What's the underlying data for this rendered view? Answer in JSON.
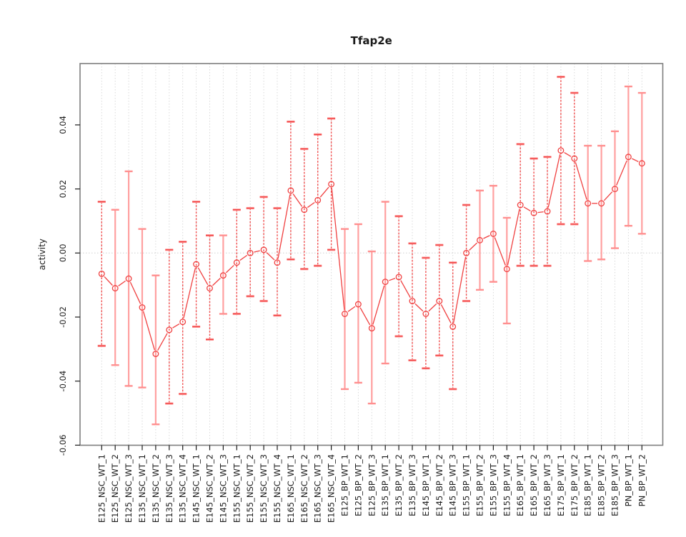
{
  "title": "Tfap2e",
  "chart_data": {
    "type": "line",
    "title": "Tfap2e",
    "xlabel": "",
    "ylabel": "activity",
    "ylim": [
      -0.0605,
      0.059
    ],
    "grid": "vertical-dotted-per-category, horizontal-dotted-at-zero",
    "legend": "none",
    "yticks": [
      0.04,
      0.02,
      0.0,
      -0.02,
      -0.04,
      -0.06
    ],
    "ytick_labels": [
      "0.04",
      "0.02",
      "0.00",
      "-0.02",
      "-0.04",
      "-0.06"
    ],
    "categories": [
      "E125_NSC_WT_1",
      "E125_NSC_WT_2",
      "E125_NSC_WT_3",
      "E135_NSC_WT_1",
      "E135_NSC_WT_2",
      "E135_NSC_WT_3",
      "E135_NSC_WT_4",
      "E145_NSC_WT_1",
      "E145_NSC_WT_2",
      "E145_NSC_WT_3",
      "E155_NSC_WT_1",
      "E155_NSC_WT_2",
      "E155_NSC_WT_3",
      "E155_NSC_WT_4",
      "E165_NSC_WT_1",
      "E165_NSC_WT_2",
      "E165_NSC_WT_3",
      "E165_NSC_WT_4",
      "E125_BP_WT_1",
      "E125_BP_WT_2",
      "E125_BP_WT_3",
      "E135_BP_WT_1",
      "E135_BP_WT_2",
      "E135_BP_WT_3",
      "E145_BP_WT_1",
      "E145_BP_WT_2",
      "E145_BP_WT_3",
      "E155_BP_WT_1",
      "E155_BP_WT_2",
      "E155_BP_WT_3",
      "E155_BP_WT_4",
      "E165_BP_WT_1",
      "E165_BP_WT_2",
      "E165_BP_WT_3",
      "E175_BP_WT_1",
      "E175_BP_WT_2",
      "E185_BP_WT_1",
      "E185_BP_WT_2",
      "E185_BP_WT_3",
      "PN_BP_WT_1",
      "PN_BP_WT_2"
    ],
    "series": [
      {
        "name": "activity",
        "values": [
          -0.0065,
          -0.011,
          -0.008,
          -0.017,
          -0.0315,
          -0.024,
          -0.0215,
          -0.0035,
          -0.011,
          -0.007,
          -0.003,
          0.0,
          0.001,
          -0.003,
          0.0195,
          0.0135,
          0.0165,
          0.0215,
          -0.019,
          -0.016,
          -0.0235,
          -0.009,
          -0.0075,
          -0.015,
          -0.019,
          -0.015,
          -0.023,
          0.0,
          0.004,
          0.006,
          -0.005,
          0.015,
          0.0125,
          0.013,
          0.032,
          0.0295,
          0.0155,
          0.0155,
          0.02,
          0.03,
          0.028
        ],
        "err_high": [
          0.016,
          0.0135,
          0.0255,
          0.0075,
          -0.007,
          0.001,
          0.0035,
          0.016,
          0.0055,
          0.0055,
          0.0135,
          0.014,
          0.0175,
          0.014,
          0.041,
          0.0325,
          0.037,
          0.042,
          0.0075,
          0.009,
          0.0005,
          0.016,
          0.0115,
          0.003,
          -0.0015,
          0.0025,
          -0.003,
          0.015,
          0.0195,
          0.021,
          0.011,
          0.034,
          0.0295,
          0.03,
          0.055,
          0.05,
          0.0335,
          0.0335,
          0.038,
          0.052,
          0.05
        ],
        "err_low": [
          -0.029,
          -0.035,
          -0.0415,
          -0.042,
          -0.0535,
          -0.047,
          -0.044,
          -0.023,
          -0.027,
          -0.019,
          -0.019,
          -0.0135,
          -0.015,
          -0.0195,
          -0.002,
          -0.005,
          -0.004,
          0.001,
          -0.0425,
          -0.0405,
          -0.047,
          -0.0345,
          -0.026,
          -0.0335,
          -0.036,
          -0.032,
          -0.0425,
          -0.015,
          -0.0115,
          -0.009,
          -0.022,
          -0.004,
          -0.004,
          -0.004,
          0.009,
          0.009,
          -0.0025,
          -0.002,
          0.0015,
          0.0085,
          0.006
        ],
        "bar_styles": [
          "dashed",
          "solid",
          "solid",
          "solid",
          "solid",
          "dashed",
          "dashed",
          "dashed",
          "dashed",
          "solid",
          "dashed",
          "dashed",
          "dashed",
          "dashed",
          "dashed",
          "dashed",
          "dashed",
          "dashed",
          "solid",
          "solid",
          "solid",
          "solid",
          "dashed",
          "dashed",
          "dashed",
          "dashed",
          "dashed",
          "dashed",
          "solid",
          "solid",
          "solid",
          "dashed",
          "dashed",
          "dashed",
          "dashed",
          "dashed",
          "solid",
          "solid",
          "solid",
          "solid",
          "solid"
        ]
      }
    ],
    "colors": {
      "point": "#f04040",
      "line": "#f04040",
      "error_bar_dark": "#f25050",
      "error_bar_light": "#ffa0a0",
      "grid": "#d9d9d9",
      "zero_line": "#d0d0d0",
      "box": "#7f7f7f",
      "text": "#1a1a1a"
    }
  }
}
